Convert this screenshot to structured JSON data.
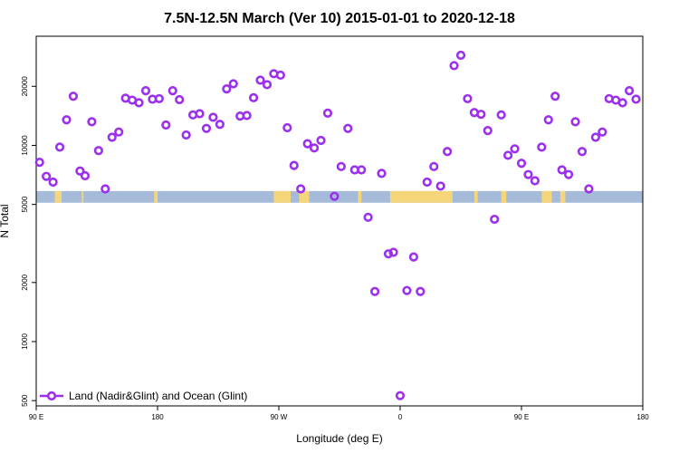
{
  "chart_data": {
    "type": "scatter",
    "title": "7.5N-12.5N March (Ver 10)   2015-01-01 to 2020-12-18",
    "xlabel": "Longitude (deg E)",
    "ylabel": "N Total",
    "xlim": [
      90,
      450
    ],
    "ylim": [
      470,
      36000
    ],
    "yscale": "log",
    "x_ticks": [
      {
        "value": 90,
        "label": "90 E"
      },
      {
        "value": 162,
        "label": "180"
      },
      {
        "value": 234,
        "label": "90 W"
      },
      {
        "value": 306,
        "label": "0"
      },
      {
        "value": 378,
        "label": "90 E"
      },
      {
        "value": 450,
        "label": "180"
      }
    ],
    "y_ticks": [
      {
        "value": 500,
        "label": "500"
      },
      {
        "value": 1000,
        "label": "1000"
      },
      {
        "value": 2000,
        "label": "2000"
      },
      {
        "value": 5000,
        "label": "5000"
      },
      {
        "value": 10000,
        "label": "10000"
      },
      {
        "value": 20000,
        "label": "20000"
      }
    ],
    "grid": false,
    "legend_position": "bottom-left",
    "colors": {
      "marker": "#9b30ee",
      "band": "#a6bbd9",
      "land": "#f6d67a"
    },
    "band": {
      "y_low": 5100,
      "y_high": 5850
    },
    "land_segments": [
      [
        101,
        105
      ],
      [
        117,
        118
      ],
      [
        160,
        162
      ],
      [
        231,
        241
      ],
      [
        246,
        252
      ],
      [
        281,
        283
      ],
      [
        300,
        337
      ],
      [
        350,
        352
      ],
      [
        366,
        369
      ],
      [
        390,
        396
      ],
      [
        401,
        404
      ]
    ],
    "series": [
      {
        "name": "Land (Nadir&Glint) and Ocean (Glint)",
        "points": [
          [
            92,
            8200
          ],
          [
            96,
            6950
          ],
          [
            100,
            6500
          ],
          [
            104,
            9800
          ],
          [
            108,
            13500
          ],
          [
            112,
            17800
          ],
          [
            116,
            7400
          ],
          [
            119,
            7000
          ],
          [
            123,
            13200
          ],
          [
            127,
            9400
          ],
          [
            131,
            6000
          ],
          [
            135,
            11000
          ],
          [
            139,
            11700
          ],
          [
            143,
            17400
          ],
          [
            147,
            17000
          ],
          [
            151,
            16500
          ],
          [
            155,
            19000
          ],
          [
            159,
            17200
          ],
          [
            163,
            17300
          ],
          [
            167,
            12700
          ],
          [
            171,
            19000
          ],
          [
            175,
            17100
          ],
          [
            179,
            11300
          ],
          [
            183,
            14300
          ],
          [
            187,
            14500
          ],
          [
            191,
            12200
          ],
          [
            195,
            13900
          ],
          [
            199,
            12800
          ],
          [
            203,
            19400
          ],
          [
            207,
            20600
          ],
          [
            211,
            14100
          ],
          [
            215,
            14200
          ],
          [
            219,
            17500
          ],
          [
            223,
            21500
          ],
          [
            227,
            20400
          ],
          [
            231,
            23200
          ],
          [
            235,
            22800
          ],
          [
            239,
            12300
          ],
          [
            243,
            7900
          ],
          [
            247,
            6000
          ],
          [
            251,
            10200
          ],
          [
            255,
            9700
          ],
          [
            259,
            10600
          ],
          [
            263,
            14600
          ],
          [
            267,
            5500
          ],
          [
            271,
            7800
          ],
          [
            275,
            12200
          ],
          [
            279,
            7500
          ],
          [
            283,
            7500
          ],
          [
            287,
            4300
          ],
          [
            291,
            1800
          ],
          [
            295,
            7200
          ],
          [
            299,
            2800
          ],
          [
            302,
            2850
          ],
          [
            306,
            530
          ],
          [
            310,
            1820
          ],
          [
            314,
            2700
          ],
          [
            318,
            1800
          ],
          [
            322,
            6500
          ],
          [
            326,
            7800
          ],
          [
            330,
            6200
          ],
          [
            334,
            9300
          ],
          [
            338,
            25500
          ],
          [
            342,
            28800
          ],
          [
            346,
            17300
          ],
          [
            350,
            14700
          ],
          [
            354,
            14400
          ],
          [
            358,
            11900
          ],
          [
            362,
            4200
          ],
          [
            366,
            14300
          ],
          [
            370,
            8900
          ],
          [
            374,
            9600
          ],
          [
            378,
            8100
          ],
          [
            382,
            7100
          ],
          [
            386,
            6600
          ],
          [
            390,
            9800
          ],
          [
            394,
            13500
          ],
          [
            398,
            17800
          ],
          [
            402,
            7500
          ],
          [
            406,
            7100
          ],
          [
            410,
            13200
          ],
          [
            414,
            9300
          ],
          [
            418,
            6000
          ],
          [
            422,
            11000
          ],
          [
            426,
            11700
          ],
          [
            430,
            17300
          ],
          [
            434,
            17000
          ],
          [
            438,
            16500
          ],
          [
            442,
            19000
          ],
          [
            446,
            17200
          ]
        ]
      }
    ]
  }
}
